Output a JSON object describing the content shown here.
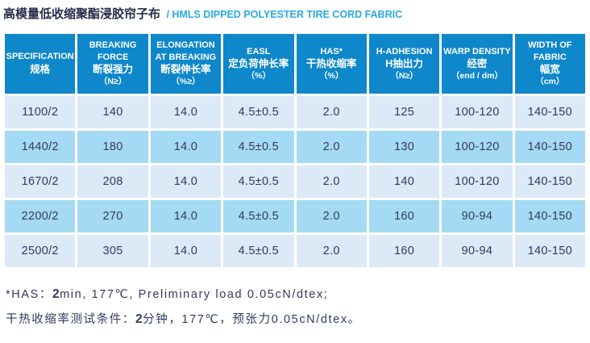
{
  "title": {
    "zh": "高模量低收缩聚酯浸胶帘子布",
    "en": "/ HMLS DIPPED POLYESTER TIRE CORD FABRIC"
  },
  "table": {
    "columns": [
      {
        "en": "SPECIFICATION",
        "zh": "规格",
        "unit": ""
      },
      {
        "en": "BREAKING FORCE",
        "zh": "断裂强力",
        "unit": "（N≥）"
      },
      {
        "en": "ELONGATION AT BREAKING",
        "zh": "断裂伸长率",
        "unit": "（%≥）"
      },
      {
        "en": "EASL",
        "zh": "定负荷伸长率",
        "unit": "（%）"
      },
      {
        "en": "HAS*",
        "zh": "干热收缩率",
        "unit": "（%）"
      },
      {
        "en": "H-ADHESION",
        "zh": "H抽出力",
        "unit": "（N≥）"
      },
      {
        "en": "WARP DENSITY",
        "zh": "经密",
        "unit": "（end / dm）"
      },
      {
        "en": "WIDTH OF FABRIC",
        "zh": "幅宽",
        "unit": "（cm）"
      }
    ],
    "rows": [
      [
        "1100/2",
        "140",
        "14.0",
        "4.5±0.5",
        "2.0",
        "125",
        "100-120",
        "140-150"
      ],
      [
        "1440/2",
        "180",
        "14.0",
        "4.5±0.5",
        "2.0",
        "130",
        "100-120",
        "140-150"
      ],
      [
        "1670/2",
        "208",
        "14.0",
        "4.5±0.5",
        "2.0",
        "140",
        "100-120",
        "140-150"
      ],
      [
        "2200/2",
        "270",
        "14.0",
        "4.5±0.5",
        "2.0",
        "160",
        "90-94",
        "140-150"
      ],
      [
        "2500/2",
        "305",
        "14.0",
        "4.5±0.5",
        "2.0",
        "160",
        "90-94",
        "140-150"
      ]
    ]
  },
  "notes": {
    "line1": {
      "prefix": "*HAS：",
      "bold": "2",
      "rest": "min, 177℃, Preliminary load 0.05cN/dtex;"
    },
    "line2": {
      "prefix": "干热收缩率测试条件：",
      "bold": "2",
      "rest": "分钟，177℃，预张力0.05cN/dtex。"
    }
  },
  "colors": {
    "header_bg": "#0e87cb",
    "row_light": "#dce9f6",
    "row_dark": "#a4daf4",
    "text_navy": "#323960",
    "title_zh": "#262c49",
    "title_en_blue": "#2aa9e0"
  }
}
